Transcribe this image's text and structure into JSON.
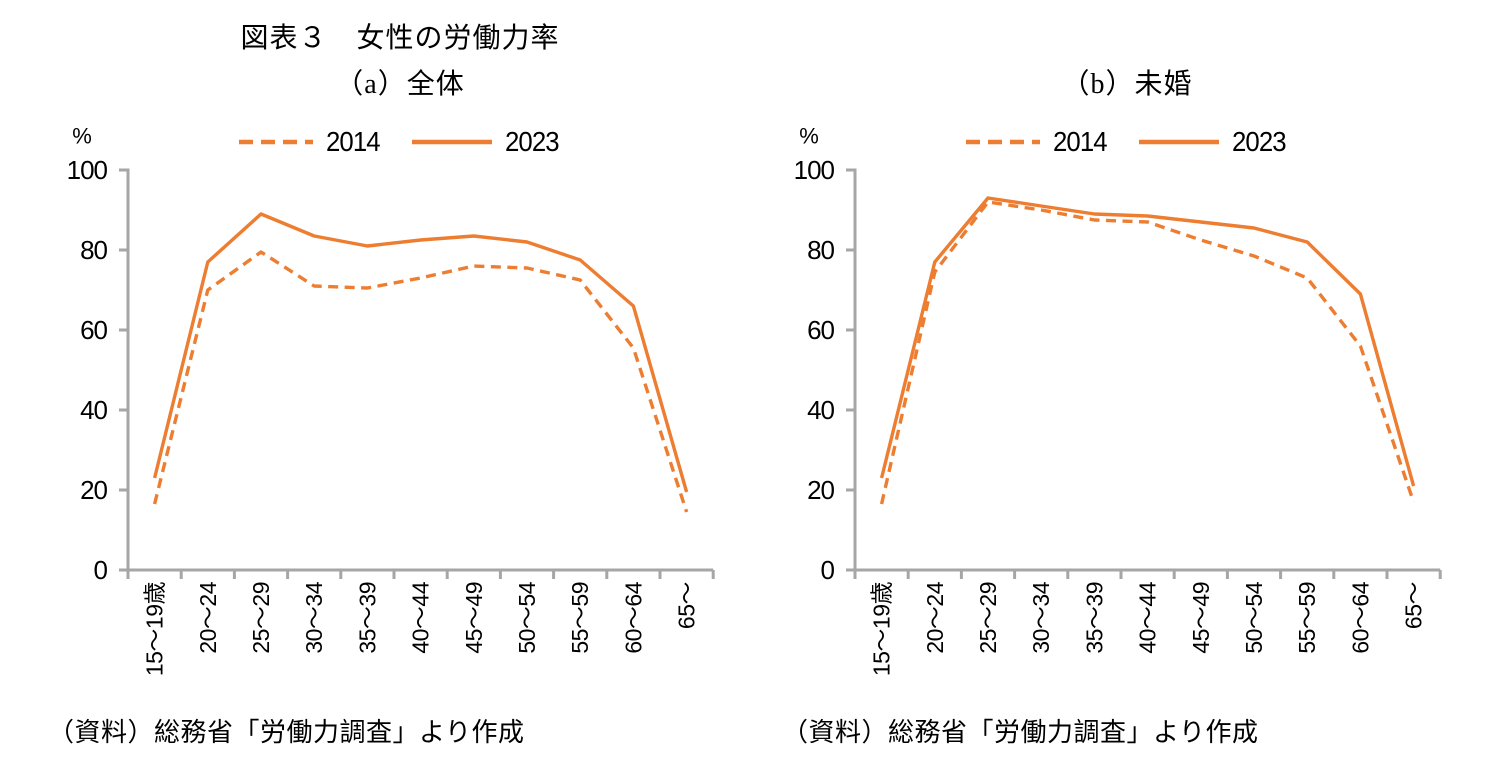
{
  "page": {
    "title": "図表３　女性の労働力率",
    "source_note": "（資料）総務省「労働力調査」より作成"
  },
  "legend": {
    "items": [
      {
        "label": "2014",
        "style": "dashed"
      },
      {
        "label": "2023",
        "style": "solid"
      }
    ]
  },
  "colors": {
    "series": "#ED7D31",
    "axis": "#A6A6A6",
    "text": "#000000",
    "background": "#FFFFFF"
  },
  "chart_data": [
    {
      "type": "line",
      "panel_label": "（a）全体",
      "unit_label": "%",
      "categories": [
        "15〜19歳",
        "20〜24",
        "25〜29",
        "30〜34",
        "35〜39",
        "40〜44",
        "45〜49",
        "50〜54",
        "55〜59",
        "60〜64",
        "65〜"
      ],
      "series": [
        {
          "name": "2014",
          "line_style": "dashed",
          "values": [
            16.5,
            70,
            79.5,
            71,
            70.5,
            73,
            76,
            75.5,
            72.5,
            55.5,
            14.5
          ]
        },
        {
          "name": "2023",
          "line_style": "solid",
          "values": [
            23,
            77,
            89,
            83.5,
            81,
            82.5,
            83.5,
            82,
            77.5,
            66,
            19.5
          ]
        }
      ],
      "ylim": [
        0,
        100
      ],
      "yticks": [
        0,
        20,
        40,
        60,
        80,
        100
      ],
      "grid": false,
      "legend_position": "top"
    },
    {
      "type": "line",
      "panel_label": "（b）未婚",
      "unit_label": "%",
      "categories": [
        "15〜19歳",
        "20〜24",
        "25〜29",
        "30〜34",
        "35〜39",
        "40〜44",
        "45〜49",
        "50〜54",
        "55〜59",
        "60〜64",
        "65〜"
      ],
      "series": [
        {
          "name": "2014",
          "line_style": "dashed",
          "values": [
            16.5,
            74.5,
            92,
            90,
            87.5,
            87,
            82.5,
            78.5,
            73,
            56,
            17
          ]
        },
        {
          "name": "2023",
          "line_style": "solid",
          "values": [
            23,
            77,
            93,
            91,
            89,
            88.5,
            87,
            85.5,
            82,
            69,
            21
          ]
        }
      ],
      "ylim": [
        0,
        100
      ],
      "yticks": [
        0,
        20,
        40,
        60,
        80,
        100
      ],
      "grid": false,
      "legend_position": "top"
    }
  ]
}
